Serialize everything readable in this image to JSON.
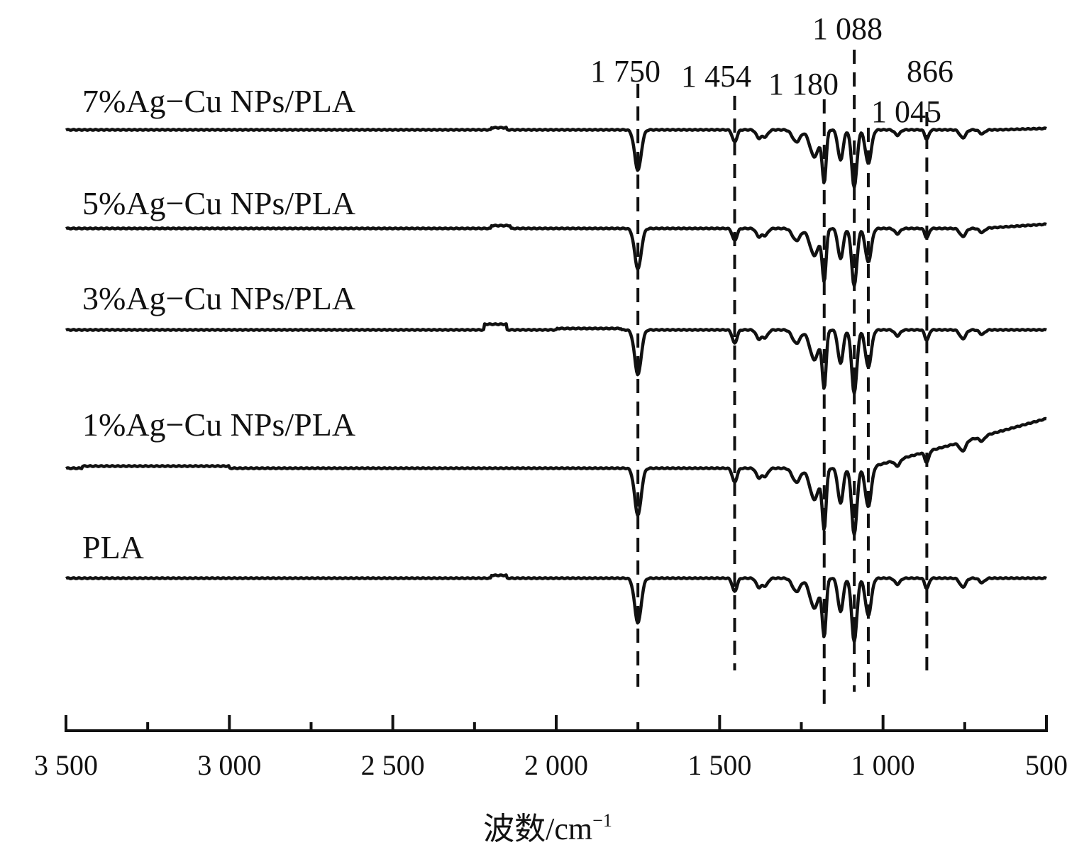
{
  "chart_data": {
    "type": "line",
    "xlabel": "波数/cm",
    "xlabel_superscript": "−1",
    "xlim": [
      3500,
      500
    ],
    "x_ticks": [
      3500,
      3000,
      2500,
      2000,
      1500,
      1000,
      500
    ],
    "x_tick_labels": [
      "3 500",
      "3 000",
      "2 500",
      "2 000",
      "1 500",
      "1 000",
      "500"
    ],
    "x_minor_ticks": [
      3250,
      2750,
      2250,
      1750,
      1250,
      750
    ],
    "reference_lines": [
      {
        "x": 1750,
        "label": "1 750"
      },
      {
        "x": 1454,
        "label": "1 454"
      },
      {
        "x": 1180,
        "label": "1 180"
      },
      {
        "x": 1088,
        "label": "1 088"
      },
      {
        "x": 1045,
        "label": "1 045"
      },
      {
        "x": 866,
        "label": "866"
      }
    ],
    "series": [
      {
        "name": "7%Ag−Cu NPs/PLA",
        "color": "#111111"
      },
      {
        "name": "5%Ag−Cu NPs/PLA",
        "color": "#111111"
      },
      {
        "name": "3%Ag−Cu NPs/PLA",
        "color": "#111111"
      },
      {
        "name": "1%Ag−Cu NPs/PLA",
        "color": "#111111"
      },
      {
        "name": "PLA",
        "color": "#111111"
      }
    ]
  }
}
